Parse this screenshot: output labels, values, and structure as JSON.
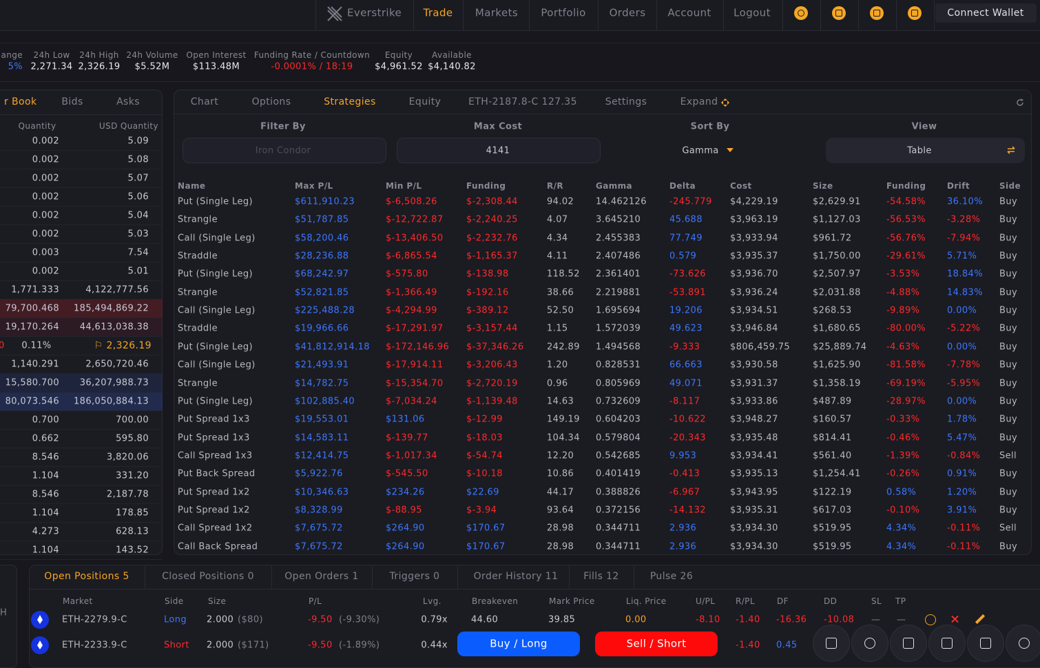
{
  "nav": {
    "brand": "Everstrike",
    "items": [
      "Trade",
      "Markets",
      "Portfolio",
      "Orders",
      "Account",
      "Logout"
    ],
    "active": 0,
    "connect": "Connect Wallet"
  },
  "stats": [
    {
      "label": "ange",
      "value": "5%"
    },
    {
      "label": "24h Low",
      "value": "2,271.34"
    },
    {
      "label": "24h High",
      "value": "2,326.19"
    },
    {
      "label": "24h Volume",
      "value": "$5.52M"
    },
    {
      "label": "Open Interest",
      "value": "$113.48M"
    },
    {
      "label": "Funding Rate / Countdown",
      "value": "-0.0001% / 18:19"
    },
    {
      "label": "Equity",
      "value": "$4,961.52"
    },
    {
      "label": "Available",
      "value": "$4,140.82"
    }
  ],
  "order_book": {
    "tabs": [
      "r Book",
      "Bids",
      "Asks"
    ],
    "headers": [
      "Quantity",
      "USD Quantity"
    ],
    "asks": [
      [
        "0.002",
        "5.09"
      ],
      [
        "0.002",
        "5.08"
      ],
      [
        "0.002",
        "5.07"
      ],
      [
        "0.002",
        "5.06"
      ],
      [
        "0.002",
        "5.04"
      ],
      [
        "0.002",
        "5.03"
      ],
      [
        "0.003",
        "7.54"
      ],
      [
        "0.002",
        "5.01"
      ],
      [
        "1,771.333",
        "4,122,777.56"
      ],
      [
        "79,700.468",
        "185,494,869.22"
      ],
      [
        "19,170.264",
        "44,613,038.38"
      ]
    ],
    "mid": [
      "0",
      "0.11%",
      "⚐ 2,326.19"
    ],
    "bids": [
      [
        "1,140.291",
        "2,650,720.46"
      ],
      [
        "15,580.700",
        "36,207,988.73"
      ],
      [
        "80,073.546",
        "186,050,884.13"
      ],
      [
        "0.700",
        "700.00"
      ],
      [
        "0.662",
        "595.80"
      ],
      [
        "8.546",
        "3,820.06"
      ],
      [
        "1.104",
        "331.20"
      ],
      [
        "8.546",
        "2,187.78"
      ],
      [
        "1.104",
        "178.85"
      ],
      [
        "4.273",
        "628.13"
      ],
      [
        "1.104",
        "143.52"
      ]
    ]
  },
  "strategies": {
    "tabs": [
      "Chart",
      "Options",
      "Strategies",
      "Equity",
      "ETH-2187.8-C 127.35",
      "Settings",
      "Expand"
    ],
    "active": 2,
    "filters": [
      {
        "label": "Filter By",
        "value": "Iron Condor"
      },
      {
        "label": "Max Cost",
        "value": "4141"
      },
      {
        "label": "Sort By",
        "value": "Gamma"
      },
      {
        "label": "View",
        "value": "Table"
      }
    ],
    "headers": [
      "Name",
      "Max P/L",
      "Min P/L",
      "Funding",
      "R/R",
      "Gamma",
      "Delta",
      "Cost",
      "Size",
      "Funding",
      "Drift",
      "Side"
    ],
    "rows": [
      [
        "Put (Single Leg)",
        "$611,910.23",
        "$-6,508.26",
        "$-2,308.44",
        "94.02",
        "14.462126",
        "-245.779",
        "$4,229.19",
        "$2,629.91",
        "-54.58%",
        "36.10%",
        "Buy"
      ],
      [
        "Strangle",
        "$51,787.85",
        "$-12,722.87",
        "$-2,240.25",
        "4.07",
        "3.645210",
        "45.688",
        "$3,963.19",
        "$1,127.03",
        "-56.53%",
        "-3.28%",
        "Buy"
      ],
      [
        "Call (Single Leg)",
        "$58,200.46",
        "$-13,406.50",
        "$-2,232.76",
        "4.34",
        "2.455383",
        "77.749",
        "$3,933.94",
        "$961.72",
        "-56.76%",
        "-7.94%",
        "Buy"
      ],
      [
        "Straddle",
        "$28,236.88",
        "$-6,865.54",
        "$-1,165.37",
        "4.11",
        "2.407486",
        "0.579",
        "$3,935.37",
        "$1,750.00",
        "-29.61%",
        "5.71%",
        "Buy"
      ],
      [
        "Put (Single Leg)",
        "$68,242.97",
        "$-575.80",
        "$-138.98",
        "118.52",
        "2.361401",
        "-73.626",
        "$3,936.70",
        "$2,507.97",
        "-3.53%",
        "18.84%",
        "Buy"
      ],
      [
        "Strangle",
        "$52,821.85",
        "$-1,366.49",
        "$-192.16",
        "38.66",
        "2.219881",
        "-53.891",
        "$3,936.24",
        "$2,031.88",
        "-4.88%",
        "14.83%",
        "Buy"
      ],
      [
        "Call (Single Leg)",
        "$225,488.28",
        "$-4,294.99",
        "$-389.12",
        "52.50",
        "1.695694",
        "19.206",
        "$3,934.51",
        "$268.53",
        "-9.89%",
        "0.00%",
        "Buy"
      ],
      [
        "Straddle",
        "$19,966.66",
        "$-17,291.97",
        "$-3,157.44",
        "1.15",
        "1.572039",
        "49.623",
        "$3,946.84",
        "$1,680.65",
        "-80.00%",
        "-5.22%",
        "Buy"
      ],
      [
        "Put (Single Leg)",
        "$41,812,914.18",
        "$-172,146.96",
        "$-37,346.26",
        "242.89",
        "1.494568",
        "-9.333",
        "$806,459.75",
        "$25,889.74",
        "-4.63%",
        "0.00%",
        "Buy"
      ],
      [
        "Call (Single Leg)",
        "$21,493.91",
        "$-17,914.11",
        "$-3,206.43",
        "1.20",
        "0.828531",
        "66.663",
        "$3,930.58",
        "$1,625.90",
        "-81.58%",
        "-7.78%",
        "Buy"
      ],
      [
        "Strangle",
        "$14,782.75",
        "$-15,354.70",
        "$-2,720.19",
        "0.96",
        "0.805969",
        "49.071",
        "$3,931.37",
        "$1,358.19",
        "-69.19%",
        "-5.95%",
        "Buy"
      ],
      [
        "Put (Single Leg)",
        "$102,885.40",
        "$-7,034.24",
        "$-1,139.48",
        "14.63",
        "0.732609",
        "-8.117",
        "$3,933.86",
        "$487.89",
        "-28.97%",
        "0.00%",
        "Buy"
      ],
      [
        "Put Spread 1x3",
        "$19,553.01",
        "$131.06",
        "$-12.99",
        "149.19",
        "0.604203",
        "-10.622",
        "$3,948.27",
        "$160.57",
        "-0.33%",
        "1.78%",
        "Buy"
      ],
      [
        "Put Spread 1x3",
        "$14,583.11",
        "$-139.77",
        "$-18.03",
        "104.34",
        "0.579804",
        "-20.343",
        "$3,935.48",
        "$814.41",
        "-0.46%",
        "5.47%",
        "Buy"
      ],
      [
        "Call Spread 1x3",
        "$12,414.75",
        "$-1,017.34",
        "$-54.74",
        "12.20",
        "0.542685",
        "9.953",
        "$3,934.41",
        "$561.40",
        "-1.39%",
        "-0.84%",
        "Sell"
      ],
      [
        "Put Back Spread",
        "$5,922.76",
        "$-545.50",
        "$-10.18",
        "10.86",
        "0.401419",
        "-0.413",
        "$3,935.13",
        "$1,254.41",
        "-0.26%",
        "0.91%",
        "Buy"
      ],
      [
        "Put Spread 1x2",
        "$10,346.63",
        "$234.26",
        "$22.69",
        "44.17",
        "0.388826",
        "-6.967",
        "$3,943.95",
        "$122.19",
        "0.58%",
        "1.20%",
        "Buy"
      ],
      [
        "Put Spread 1x2",
        "$8,328.99",
        "$-88.95",
        "$-3.94",
        "93.64",
        "0.372156",
        "-14.132",
        "$3,935.31",
        "$617.03",
        "-0.10%",
        "3.91%",
        "Buy"
      ],
      [
        "Call Spread 1x2",
        "$7,675.72",
        "$264.90",
        "$170.67",
        "28.98",
        "0.344711",
        "2.936",
        "$3,934.30",
        "$519.95",
        "4.34%",
        "-0.11%",
        "Sell"
      ],
      [
        "Call Back Spread",
        "$7,675.72",
        "$264.90",
        "$170.67",
        "28.98",
        "0.344711",
        "2.936",
        "$3,934.30",
        "$519.95",
        "4.34%",
        "-0.11%",
        "Buy"
      ]
    ]
  },
  "side_stub": "H",
  "positions": {
    "tabs": [
      "Open Positions 5",
      "Closed Positions 0",
      "Open Orders 1",
      "Triggers 0",
      "Order History 11",
      "Fills 12",
      "Pulse 26"
    ],
    "active": 0,
    "headers": [
      "Market",
      "Side",
      "Size",
      "P/L",
      "Lvg.",
      "Breakeven",
      "Mark Price",
      "Liq. Price",
      "U/PL",
      "R/PL",
      "DF",
      "DD",
      "SL",
      "TP"
    ],
    "rows": [
      [
        "ETH-2279.9-C",
        "Long",
        "2.000",
        "($80)",
        "-9.50",
        "(-9.30%)",
        "0.79x",
        "44.60",
        "39.85",
        "0.00",
        "-8.10",
        "-1.40",
        "-16.36",
        "-10.08",
        "—",
        "—"
      ],
      [
        "ETH-2233.9-C",
        "Short",
        "2.000",
        "($171)",
        "-9.50",
        "(-1.89%)",
        "0.44x",
        null,
        null,
        null,
        null,
        "-1.40",
        "0.45",
        null,
        null,
        null
      ]
    ]
  },
  "actions": [
    "Buy / Long",
    "Sell / Short"
  ]
}
